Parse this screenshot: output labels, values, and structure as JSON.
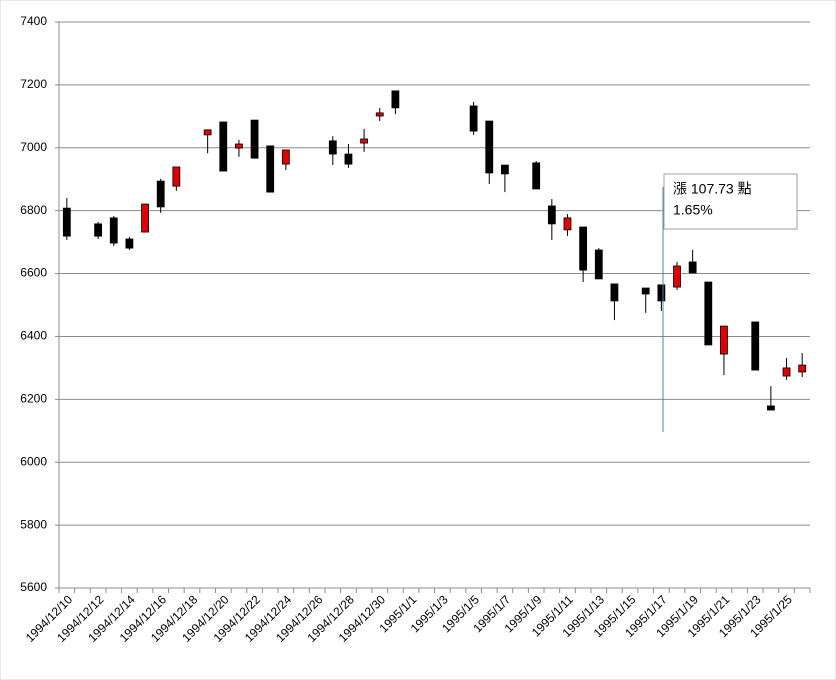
{
  "chart_data": {
    "type": "candlestick",
    "categories": [
      "1994/12/10",
      null,
      "1994/12/12",
      null,
      "1994/12/14",
      null,
      "1994/12/16",
      null,
      "1994/12/18",
      null,
      "1994/12/20",
      null,
      "1994/12/22",
      null,
      "1994/12/24",
      null,
      "1994/12/26",
      null,
      "1994/12/28",
      null,
      "1994/12/30",
      null,
      "1995/1/1",
      null,
      "1995/1/3",
      null,
      "1995/1/5",
      null,
      "1995/1/7",
      null,
      "1995/1/9",
      null,
      "1995/1/11",
      null,
      "1995/1/13",
      null,
      "1995/1/15",
      null,
      "1995/1/17",
      null,
      "1995/1/19",
      null,
      "1995/1/21",
      null,
      "1995/1/23",
      null,
      "1995/1/25",
      null
    ],
    "open": [
      6808,
      null,
      6758,
      6777,
      6710,
      6732,
      6894,
      6878,
      null,
      7041,
      7082,
      6999,
      7088,
      7006,
      6948,
      null,
      null,
      7022,
      6980,
      7015,
      7101,
      7181,
      null,
      null,
      null,
      null,
      7133,
      7085,
      6945,
      null,
      6952,
      6815,
      6739,
      6748,
      6675,
      6567,
      null,
      6554,
      6564,
      6557,
      6637,
      6573,
      6344,
      null,
      6446,
      6179,
      6274,
      6287
    ],
    "high": [
      6840,
      null,
      6764,
      6783,
      6716,
      6821,
      6901,
      6939,
      null,
      7057,
      7082,
      7025,
      7088,
      7006,
      6993,
      null,
      null,
      7037,
      7012,
      7060,
      7127,
      7181,
      null,
      null,
      null,
      null,
      7146,
      7085,
      6945,
      null,
      6958,
      6837,
      6789,
      6748,
      6681,
      6567,
      null,
      6554,
      6564,
      6637,
      6675,
      6573,
      6433,
      null,
      6446,
      6242,
      6331,
      6347
    ],
    "low": [
      6707,
      null,
      6710,
      6688,
      6675,
      6732,
      6793,
      6863,
      null,
      6983,
      6926,
      6971,
      6967,
      6859,
      6929,
      null,
      null,
      6945,
      6936,
      6987,
      7085,
      7107,
      null,
      null,
      null,
      null,
      7041,
      6885,
      6859,
      null,
      6869,
      6707,
      6720,
      6573,
      6583,
      6452,
      null,
      6475,
      6481,
      6548,
      6602,
      6373,
      6277,
      null,
      6293,
      6166,
      6262,
      6271
    ],
    "close": [
      6719,
      null,
      6719,
      6697,
      6681,
      6821,
      6812,
      6939,
      null,
      7057,
      6926,
      7012,
      6967,
      6859,
      6993,
      null,
      null,
      6980,
      6948,
      7028,
      7111,
      7127,
      null,
      null,
      null,
      null,
      7053,
      6920,
      6917,
      null,
      6869,
      6758,
      6777,
      6611,
      6583,
      6513,
      null,
      6535,
      6513,
      6624,
      6602,
      6373,
      6433,
      null,
      6293,
      6166,
      6300,
      6309
    ],
    "up_color": "#e00000",
    "down_color": "#000000",
    "ylim": [
      5600,
      7400
    ],
    "yticks": [
      5600,
      5800,
      6000,
      6200,
      6400,
      6600,
      6800,
      7000,
      7200,
      7400
    ],
    "grid": true,
    "annotation": {
      "lines": [
        "漲 107.73 點",
        "1.65%"
      ],
      "color": "#e00000"
    }
  }
}
